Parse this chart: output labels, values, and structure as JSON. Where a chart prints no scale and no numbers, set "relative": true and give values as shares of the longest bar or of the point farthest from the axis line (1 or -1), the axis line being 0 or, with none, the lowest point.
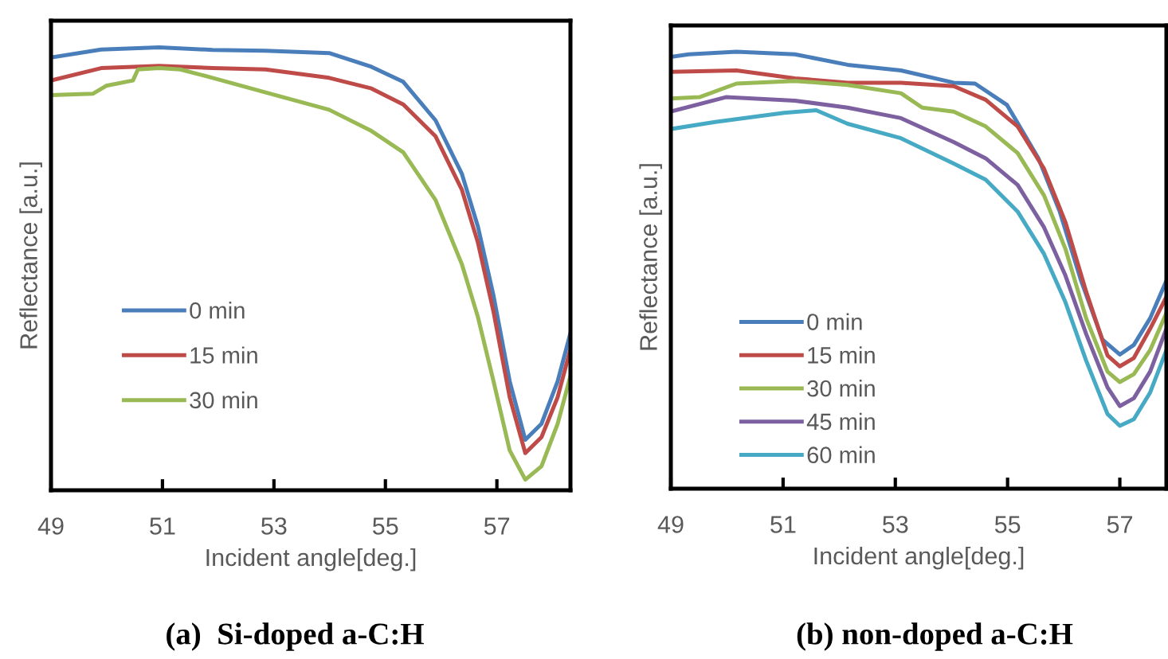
{
  "chart_data": [
    {
      "type": "line",
      "title": "(a)  Si-doped a-C:H",
      "xlabel": "Incident angle[deg.]",
      "ylabel": "Reflectance [a.u.]",
      "relative": true,
      "xlim": [
        49,
        58.32
      ],
      "xticks": [
        49,
        51,
        53,
        55,
        57
      ],
      "tick_labels": "x",
      "grid": false,
      "legend": "lower left",
      "marker": "none",
      "line_style": "solid",
      "series": [
        {
          "name": "0 min",
          "color": "#4a7ebb",
          "x": [
            49,
            49.9,
            50.94,
            51.9,
            52.85,
            53.99,
            54.75,
            55.32,
            55.9,
            56.37,
            56.66,
            56.94,
            57.23,
            57.51,
            57.8,
            58.09,
            58.32
          ],
          "values": [
            0.977,
            0.995,
            1.0,
            0.994,
            0.992,
            0.987,
            0.956,
            0.922,
            0.835,
            0.715,
            0.595,
            0.439,
            0.246,
            0.114,
            0.15,
            0.246,
            0.355
          ]
        },
        {
          "name": "15 min",
          "color": "#be4b48",
          "x": [
            49,
            49.9,
            50.94,
            51.9,
            52.85,
            53.99,
            54.75,
            55.32,
            55.9,
            56.37,
            56.66,
            56.94,
            57.23,
            57.51,
            57.8,
            58.09,
            58.32
          ],
          "values": [
            0.925,
            0.953,
            0.958,
            0.953,
            0.95,
            0.931,
            0.907,
            0.871,
            0.799,
            0.679,
            0.559,
            0.403,
            0.21,
            0.084,
            0.12,
            0.21,
            0.319
          ]
        },
        {
          "name": "30 min",
          "color": "#98b954",
          "x": [
            49,
            49.75,
            49.99,
            50.47,
            50.56,
            50.94,
            51.32,
            51.9,
            52.85,
            53.99,
            54.75,
            55.32,
            55.9,
            56.37,
            56.66,
            56.94,
            57.23,
            57.51,
            57.8,
            58.09,
            58.32
          ],
          "values": [
            0.892,
            0.895,
            0.913,
            0.925,
            0.95,
            0.953,
            0.95,
            0.931,
            0.898,
            0.859,
            0.811,
            0.763,
            0.655,
            0.511,
            0.391,
            0.246,
            0.09,
            0.024,
            0.054,
            0.15,
            0.258
          ]
        }
      ]
    },
    {
      "type": "line",
      "title": "(b) non-doped a-C:H",
      "xlabel": "Incident angle[deg.]",
      "ylabel": "Reflectance [a.u.]",
      "relative": true,
      "xlim": [
        49,
        57.83
      ],
      "xticks": [
        49,
        51,
        53,
        55,
        57
      ],
      "tick_labels": "x",
      "grid": false,
      "legend": "lower left",
      "marker": "none",
      "line_style": "solid",
      "series": [
        {
          "name": "0 min",
          "color": "#4a7ebb",
          "x": [
            49,
            49.32,
            50.17,
            51.21,
            52.15,
            53.1,
            54.04,
            54.42,
            54.99,
            55.55,
            55.93,
            56.31,
            56.69,
            57.0,
            57.25,
            57.54,
            57.83
          ],
          "values": [
            0.988,
            0.994,
            1.0,
            0.994,
            0.97,
            0.957,
            0.929,
            0.927,
            0.878,
            0.756,
            0.634,
            0.476,
            0.341,
            0.307,
            0.329,
            0.39,
            0.476
          ]
        },
        {
          "name": "15 min",
          "color": "#be4b48",
          "x": [
            49,
            50.17,
            51.21,
            52.15,
            53.1,
            54.04,
            54.61,
            55.18,
            55.65,
            56.03,
            56.4,
            56.78,
            57.0,
            57.25,
            57.54,
            57.83
          ],
          "values": [
            0.954,
            0.957,
            0.939,
            0.929,
            0.929,
            0.921,
            0.89,
            0.829,
            0.732,
            0.61,
            0.451,
            0.305,
            0.28,
            0.299,
            0.366,
            0.439
          ]
        },
        {
          "name": "30 min",
          "color": "#98b954",
          "x": [
            49,
            49.51,
            50.17,
            51.21,
            52.15,
            53.1,
            53.48,
            54.04,
            54.61,
            55.18,
            55.65,
            56.03,
            56.4,
            56.78,
            57.0,
            57.25,
            57.54,
            57.83
          ],
          "values": [
            0.893,
            0.896,
            0.927,
            0.933,
            0.924,
            0.905,
            0.872,
            0.863,
            0.829,
            0.768,
            0.671,
            0.549,
            0.39,
            0.268,
            0.244,
            0.262,
            0.317,
            0.402
          ]
        },
        {
          "name": "45 min",
          "color": "#7d60a0",
          "x": [
            49,
            49.98,
            51.21,
            52.15,
            53.1,
            54.04,
            54.61,
            55.18,
            55.65,
            56.03,
            56.4,
            56.78,
            57.0,
            57.25,
            57.54,
            57.83
          ],
          "values": [
            0.863,
            0.896,
            0.888,
            0.872,
            0.848,
            0.793,
            0.756,
            0.695,
            0.598,
            0.488,
            0.354,
            0.232,
            0.189,
            0.207,
            0.268,
            0.366
          ]
        },
        {
          "name": "60 min",
          "color": "#46aac5",
          "x": [
            49,
            49.79,
            51.02,
            51.59,
            52.15,
            53.1,
            54.04,
            54.61,
            55.18,
            55.65,
            56.03,
            56.4,
            56.78,
            57.0,
            57.25,
            57.54,
            57.83
          ],
          "values": [
            0.823,
            0.839,
            0.86,
            0.866,
            0.835,
            0.802,
            0.744,
            0.707,
            0.634,
            0.537,
            0.427,
            0.293,
            0.171,
            0.144,
            0.159,
            0.22,
            0.317
          ]
        }
      ]
    }
  ]
}
